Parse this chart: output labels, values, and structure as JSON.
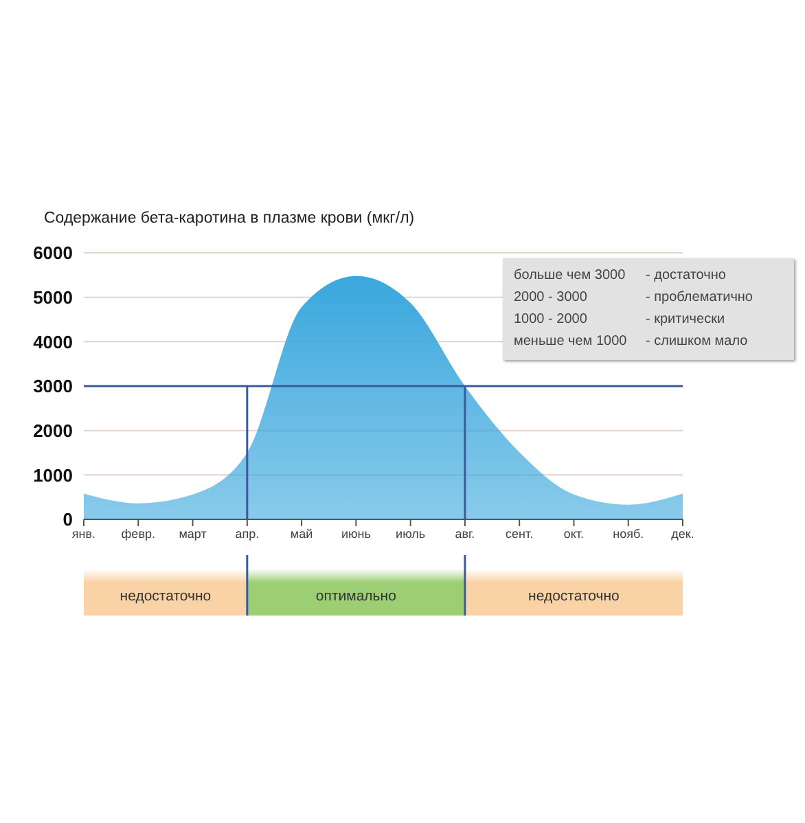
{
  "chart_data": {
    "type": "area",
    "title": "Содержание бета-каротина в плазме крови (мкг/л)",
    "categories": [
      "янв.",
      "февр.",
      "март",
      "апр.",
      "май",
      "июнь",
      "июль",
      "авг.",
      "сент.",
      "окт.",
      "нояб.",
      "дек."
    ],
    "series": [
      {
        "color": "#3aa7dd",
        "values": [
          580,
          360,
          560,
          1500,
          4780,
          5480,
          4870,
          3000,
          1510,
          560,
          330,
          580
        ]
      }
    ],
    "ylim": [
      0,
      6000
    ],
    "yticks": [
      0,
      1000,
      2000,
      3000,
      4000,
      5000,
      6000
    ],
    "grid": "y",
    "ref_lines": [
      {
        "axis": "y",
        "value": 3000,
        "color": "#3b5a9a"
      },
      {
        "axis": "x",
        "value": "апр.",
        "color": "#3b5a9a"
      },
      {
        "axis": "x",
        "value": "авг.",
        "color": "#3b5a9a"
      }
    ],
    "annotations": [
      "больше чем 3000",
      "- достаточно",
      "2000 - 3000",
      "- проблематично",
      "1000 - 2000",
      "- критически",
      "меньше чем 1000",
      "- слишком мало",
      "недостаточно",
      "оптимально",
      "недостаточно"
    ]
  }
}
